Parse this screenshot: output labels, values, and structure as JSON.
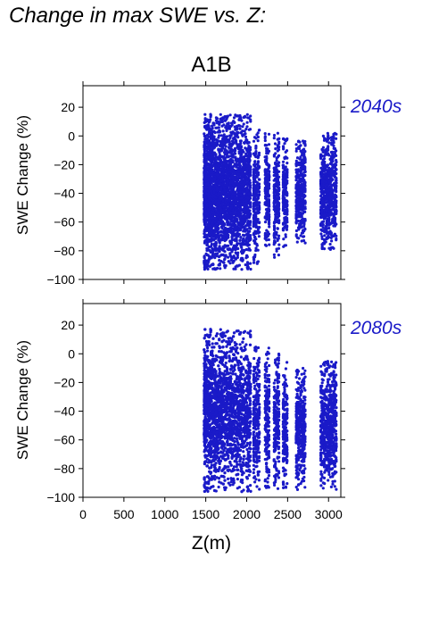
{
  "figure": {
    "title": "Change in max SWE vs. Z:",
    "scenario": "A1B",
    "point_color": "#1a1ac8"
  },
  "chart_data": [
    {
      "type": "scatter",
      "period_label": "2040s",
      "ylabel": "SWE Change (%)",
      "xlabel": "",
      "xlim": [
        0,
        3150
      ],
      "ylim": [
        -100,
        35
      ],
      "xticks": [
        0,
        500,
        1000,
        1500,
        2000,
        2500,
        3000
      ],
      "yticks": [
        20,
        0,
        -20,
        -40,
        -60,
        -80,
        -100
      ],
      "grid": false,
      "clusters": [
        {
          "x_range": [
            1480,
            2050
          ],
          "y_range": [
            -93,
            15
          ]
        },
        {
          "x_range": [
            2080,
            2160
          ],
          "y_range": [
            -90,
            5
          ]
        },
        {
          "x_range": [
            2220,
            2280
          ],
          "y_range": [
            -80,
            3
          ]
        },
        {
          "x_range": [
            2330,
            2400
          ],
          "y_range": [
            -85,
            2
          ]
        },
        {
          "x_range": [
            2440,
            2500
          ],
          "y_range": [
            -80,
            0
          ]
        },
        {
          "x_range": [
            2600,
            2720
          ],
          "y_range": [
            -75,
            -3
          ]
        },
        {
          "x_range": [
            2900,
            3100
          ],
          "y_range": [
            -80,
            2
          ]
        }
      ]
    },
    {
      "type": "scatter",
      "period_label": "2080s",
      "ylabel": "SWE Change (%)",
      "xlabel": "Z(m)",
      "xlim": [
        0,
        3150
      ],
      "ylim": [
        -100,
        35
      ],
      "xticks": [
        0,
        500,
        1000,
        1500,
        2000,
        2500,
        3000
      ],
      "yticks": [
        20,
        0,
        -20,
        -40,
        -60,
        -80,
        -100
      ],
      "grid": false,
      "clusters": [
        {
          "x_range": [
            1480,
            2050
          ],
          "y_range": [
            -96,
            17
          ]
        },
        {
          "x_range": [
            2080,
            2160
          ],
          "y_range": [
            -95,
            5
          ]
        },
        {
          "x_range": [
            2220,
            2280
          ],
          "y_range": [
            -95,
            5
          ]
        },
        {
          "x_range": [
            2330,
            2400
          ],
          "y_range": [
            -95,
            0
          ]
        },
        {
          "x_range": [
            2440,
            2500
          ],
          "y_range": [
            -95,
            -5
          ]
        },
        {
          "x_range": [
            2600,
            2720
          ],
          "y_range": [
            -95,
            -10
          ]
        },
        {
          "x_range": [
            2900,
            3100
          ],
          "y_range": [
            -95,
            -5
          ]
        }
      ]
    }
  ]
}
